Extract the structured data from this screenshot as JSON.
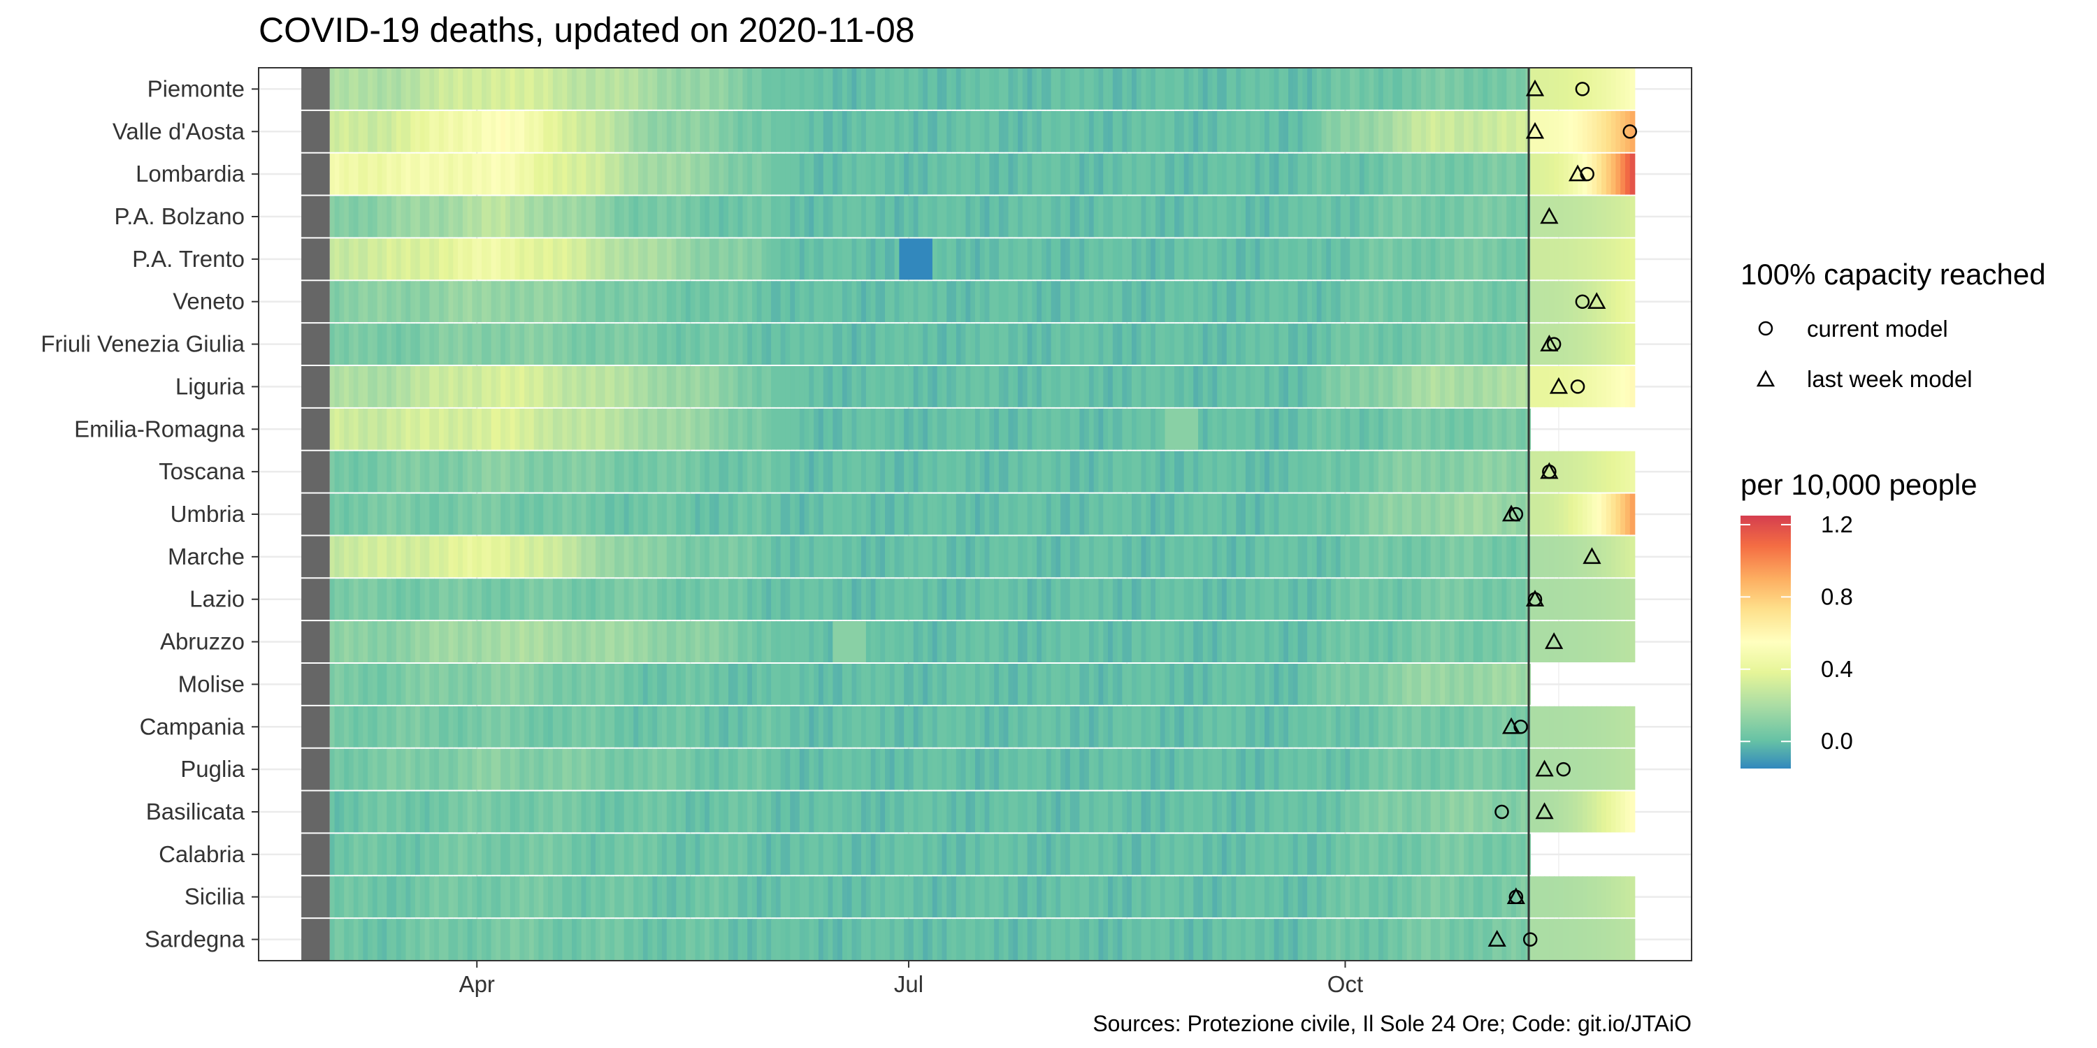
{
  "chart_data": {
    "type": "heatmap",
    "title": "COVID-19 deaths, updated on 2020-11-08",
    "caption": "Sources: Protezione civile, Il Sole 24 Ore; Code: git.io/JTAiO",
    "x_axis": {
      "ticks": [
        "Apr",
        "Jul",
        "Oct"
      ],
      "tick_dates": [
        "2020-04-01",
        "2020-07-01",
        "2020-10-01"
      ],
      "range": [
        "2020-02-15",
        "2020-12-13"
      ]
    },
    "update_date": "2020-11-08",
    "data_start": "2020-02-24",
    "forecast_end": "2020-11-30",
    "regions": [
      {
        "name": "Piemonte",
        "mar": 0.2,
        "apr": 0.35,
        "may": 0.2,
        "summer": 0.0,
        "oct": 0.05,
        "nov_start": 0.35,
        "nov_end": 0.55,
        "current": "2020-11-20",
        "last_week": "2020-11-10"
      },
      {
        "name": "Valle d'Aosta",
        "mar": 0.3,
        "apr": 0.55,
        "may": 0.15,
        "summer": 0.0,
        "oct": 0.3,
        "nov_start": 0.5,
        "nov_end": 0.95,
        "current": "2020-11-30",
        "last_week": "2020-11-10"
      },
      {
        "name": "Lombardia",
        "mar": 0.45,
        "apr": 0.5,
        "may": 0.2,
        "summer": 0.0,
        "oct": 0.05,
        "nov_start": 0.35,
        "nov_end": 1.25,
        "current": "2020-11-21",
        "last_week": "2020-11-19"
      },
      {
        "name": "P.A. Bolzano",
        "mar": 0.1,
        "apr": 0.25,
        "may": 0.05,
        "summer": 0.0,
        "oct": 0.05,
        "nov_start": 0.25,
        "nov_end": 0.35,
        "current": null,
        "last_week": "2020-11-13"
      },
      {
        "name": "P.A. Trento",
        "mar": 0.3,
        "apr": 0.45,
        "may": 0.2,
        "summer": 0.0,
        "oct": 0.05,
        "nov_start": 0.3,
        "nov_end": 0.4,
        "current": null,
        "last_week": null
      },
      {
        "name": "Veneto",
        "mar": 0.1,
        "apr": 0.15,
        "may": 0.05,
        "summer": 0.0,
        "oct": 0.05,
        "nov_start": 0.25,
        "nov_end": 0.45,
        "current": "2020-11-20",
        "last_week": "2020-11-23"
      },
      {
        "name": "Friuli Venezia Giulia",
        "mar": 0.05,
        "apr": 0.1,
        "may": 0.05,
        "summer": 0.0,
        "oct": 0.05,
        "nov_start": 0.25,
        "nov_end": 0.4,
        "current": "2020-11-14",
        "last_week": "2020-11-13"
      },
      {
        "name": "Liguria",
        "mar": 0.2,
        "apr": 0.35,
        "may": 0.2,
        "summer": 0.0,
        "oct": 0.2,
        "nov_start": 0.4,
        "nov_end": 0.6,
        "current": "2020-11-19",
        "last_week": "2020-11-15"
      },
      {
        "name": "Emilia-Romagna",
        "mar": 0.3,
        "apr": 0.35,
        "may": 0.2,
        "summer": 0.0,
        "oct": 0.05,
        "nov_start": null,
        "nov_end": null,
        "current": null,
        "last_week": null
      },
      {
        "name": "Toscana",
        "mar": 0.05,
        "apr": 0.1,
        "may": 0.05,
        "summer": 0.0,
        "oct": 0.1,
        "nov_start": 0.3,
        "nov_end": 0.45,
        "current": "2020-11-13",
        "last_week": "2020-11-13"
      },
      {
        "name": "Umbria",
        "mar": 0.05,
        "apr": 0.05,
        "may": 0.02,
        "summer": 0.0,
        "oct": 0.15,
        "nov_start": 0.3,
        "nov_end": 1.0,
        "current": "2020-11-06",
        "last_week": "2020-11-05"
      },
      {
        "name": "Marche",
        "mar": 0.3,
        "apr": 0.4,
        "may": 0.1,
        "summer": 0.0,
        "oct": 0.05,
        "nov_start": 0.2,
        "nov_end": 0.35,
        "current": null,
        "last_week": "2020-11-22"
      },
      {
        "name": "Lazio",
        "mar": 0.05,
        "apr": 0.05,
        "may": 0.05,
        "summer": 0.0,
        "oct": 0.05,
        "nov_start": 0.2,
        "nov_end": 0.25,
        "current": "2020-11-10",
        "last_week": "2020-11-10"
      },
      {
        "name": "Abruzzo",
        "mar": 0.1,
        "apr": 0.2,
        "may": 0.15,
        "summer": 0.0,
        "oct": 0.05,
        "nov_start": 0.2,
        "nov_end": 0.25,
        "current": null,
        "last_week": "2020-11-14"
      },
      {
        "name": "Molise",
        "mar": 0.05,
        "apr": 0.1,
        "may": 0.02,
        "summer": 0.0,
        "oct": 0.15,
        "nov_start": null,
        "nov_end": null,
        "current": null,
        "last_week": null
      },
      {
        "name": "Campania",
        "mar": 0.05,
        "apr": 0.05,
        "may": 0.02,
        "summer": 0.0,
        "oct": 0.05,
        "nov_start": 0.2,
        "nov_end": 0.25,
        "current": "2020-11-07",
        "last_week": "2020-11-05"
      },
      {
        "name": "Puglia",
        "mar": 0.05,
        "apr": 0.1,
        "may": 0.05,
        "summer": 0.0,
        "oct": 0.05,
        "nov_start": 0.2,
        "nov_end": 0.25,
        "current": "2020-11-16",
        "last_week": "2020-11-12"
      },
      {
        "name": "Basilicata",
        "mar": 0.02,
        "apr": 0.05,
        "may": 0.02,
        "summer": 0.0,
        "oct": 0.1,
        "nov_start": 0.2,
        "nov_end": 0.6,
        "current": "2020-11-03",
        "last_week": "2020-11-12"
      },
      {
        "name": "Calabria",
        "mar": 0.02,
        "apr": 0.05,
        "may": 0.02,
        "summer": 0.0,
        "oct": 0.05,
        "nov_start": null,
        "nov_end": null,
        "current": null,
        "last_week": null
      },
      {
        "name": "Sicilia",
        "mar": 0.02,
        "apr": 0.05,
        "may": 0.02,
        "summer": 0.0,
        "oct": 0.05,
        "nov_start": 0.2,
        "nov_end": 0.3,
        "current": "2020-11-06",
        "last_week": "2020-11-06"
      },
      {
        "name": "Sardegna",
        "mar": 0.02,
        "apr": 0.05,
        "may": 0.02,
        "summer": 0.0,
        "oct": 0.05,
        "nov_start": 0.2,
        "nov_end": 0.25,
        "current": "2020-11-09",
        "last_week": "2020-11-02"
      }
    ],
    "special_cells": [
      {
        "region": "P.A. Trento",
        "date": "2020-06-29",
        "value": -0.15
      },
      {
        "region": "Emilia-Romagna",
        "date": "2020-08-24",
        "value": 0.1
      },
      {
        "region": "Abruzzo",
        "date": "2020-06-15",
        "value": 0.1
      }
    ],
    "legend_shape": {
      "title": "100% capacity reached",
      "items": [
        {
          "label": "current model",
          "shape": "circle"
        },
        {
          "label": "last week model",
          "shape": "triangle"
        }
      ]
    },
    "legend_fill": {
      "title": "per 10,000 people",
      "ticks": [
        "1.2",
        "0.8",
        "0.4",
        "0.0"
      ],
      "tick_values": [
        1.2,
        0.8,
        0.4,
        0.0
      ],
      "range": [
        -0.15,
        1.25
      ],
      "palette": "Spectral (reversed)"
    },
    "colors": {
      "panel_border": "#333333",
      "grid": "#ebebeb",
      "missing_data": "#666666",
      "today_line": "#333333"
    },
    "grid": true
  }
}
